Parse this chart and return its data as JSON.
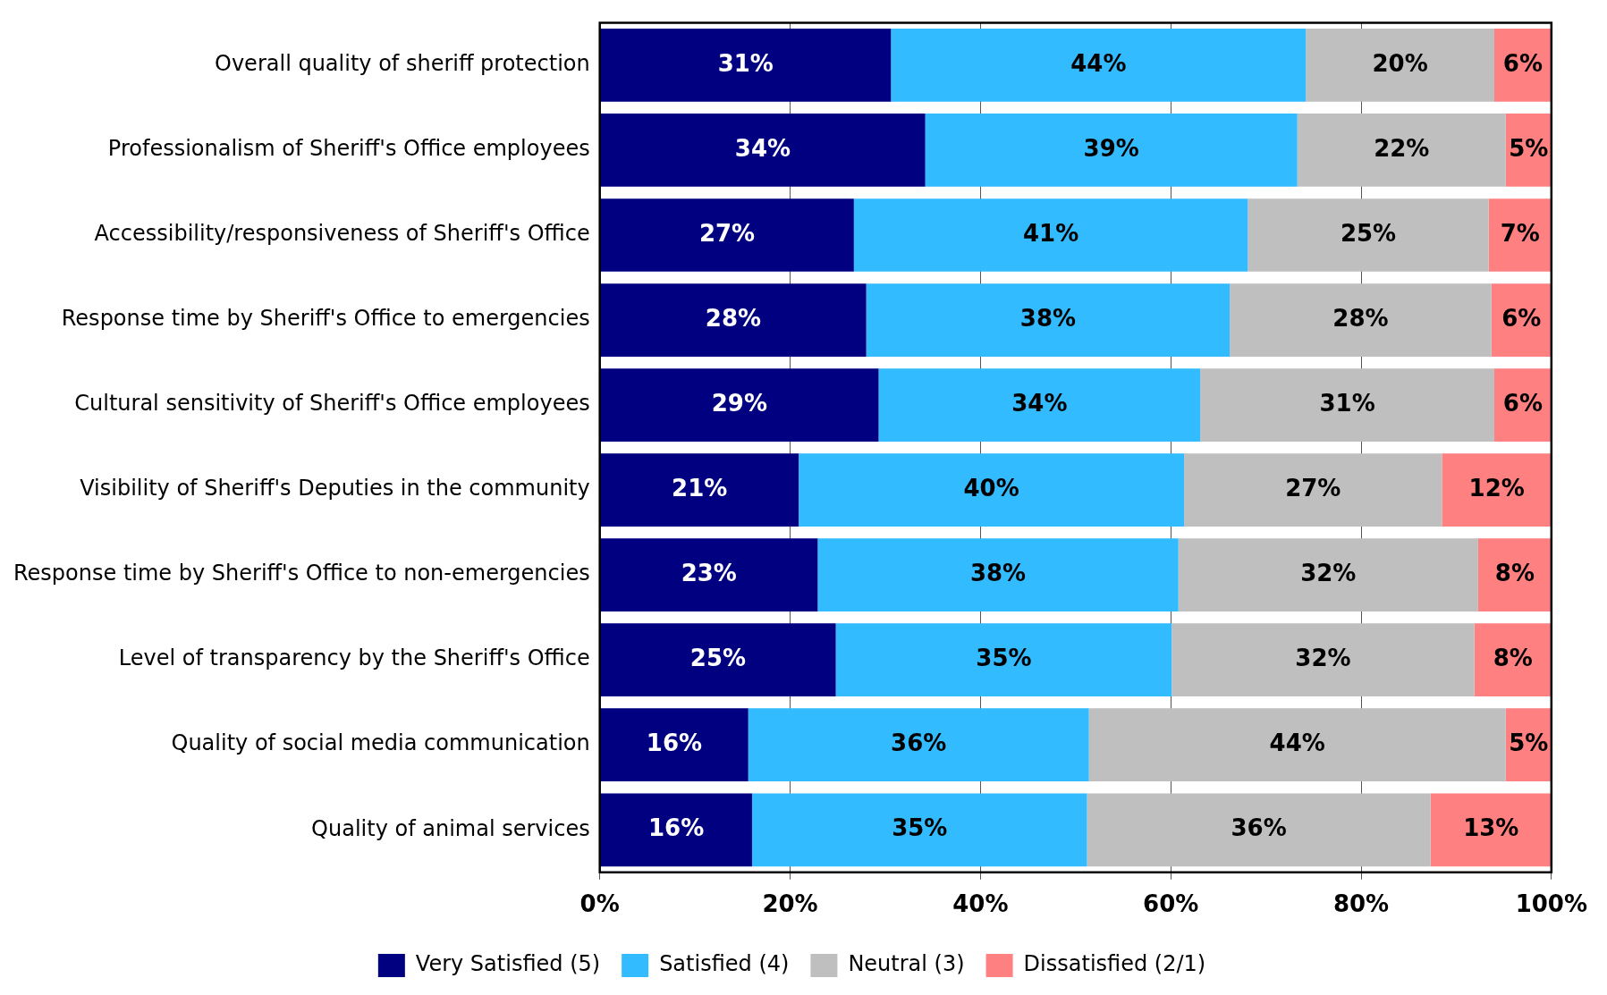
{
  "chart_data": {
    "type": "bar",
    "orientation": "horizontal",
    "stacked": true,
    "categories": [
      "Overall quality of sheriff protection",
      "Professionalism of Sheriff's Office employees",
      "Accessibility/responsiveness of Sheriff's Office",
      "Response time by Sheriff's Office to emergencies",
      "Cultural sensitivity of Sheriff's Office employees",
      "Visibility of Sheriff's Deputies in the community",
      "Response time by Sheriff's Office to non-emergencies",
      "Level of transparency by the Sheriff's Office",
      "Quality of social media communication",
      "Quality of animal services"
    ],
    "series": [
      {
        "name": "Very Satisfied (5)",
        "color": "#000080",
        "values": [
          30.6,
          34.2,
          26.7,
          28.0,
          29.3,
          20.9,
          22.9,
          24.8,
          15.6,
          16.0
        ],
        "value_labels": [
          "31%",
          "34%",
          "27%",
          "28%",
          "29%",
          "21%",
          "23%",
          "25%",
          "16%",
          "16%"
        ]
      },
      {
        "name": "Satisfied (4)",
        "color": "#33bbff",
        "values": [
          43.6,
          39.1,
          41.4,
          38.2,
          33.8,
          40.5,
          37.9,
          35.3,
          35.8,
          35.2
        ],
        "value_labels": [
          "44%",
          "39%",
          "41%",
          "38%",
          "34%",
          "40%",
          "38%",
          "35%",
          "36%",
          "35%"
        ]
      },
      {
        "name": "Neutral (3)",
        "color": "#bfbfbf",
        "values": [
          19.8,
          21.9,
          25.3,
          27.5,
          30.9,
          27.1,
          31.5,
          31.8,
          43.8,
          36.1
        ],
        "value_labels": [
          "20%",
          "22%",
          "25%",
          "28%",
          "31%",
          "27%",
          "32%",
          "32%",
          "44%",
          "36%"
        ]
      },
      {
        "name": "Dissatisfied (2/1)",
        "color": "#ff8080",
        "values": [
          6.0,
          4.8,
          6.6,
          6.3,
          6.0,
          11.5,
          7.7,
          8.1,
          4.8,
          12.7
        ],
        "value_labels": [
          "6%",
          "5%",
          "7%",
          "6%",
          "6%",
          "12%",
          "8%",
          "8%",
          "5%",
          "13%"
        ]
      }
    ],
    "xlim": [
      0,
      100
    ],
    "xticks": [
      {
        "value": 0,
        "label": "0%"
      },
      {
        "value": 20,
        "label": "20%"
      },
      {
        "value": 40,
        "label": "40%"
      },
      {
        "value": 60,
        "label": "60%"
      },
      {
        "value": 80,
        "label": "80%"
      },
      {
        "value": 100,
        "label": "100%"
      }
    ],
    "grid": "x",
    "legend": "bottom"
  }
}
